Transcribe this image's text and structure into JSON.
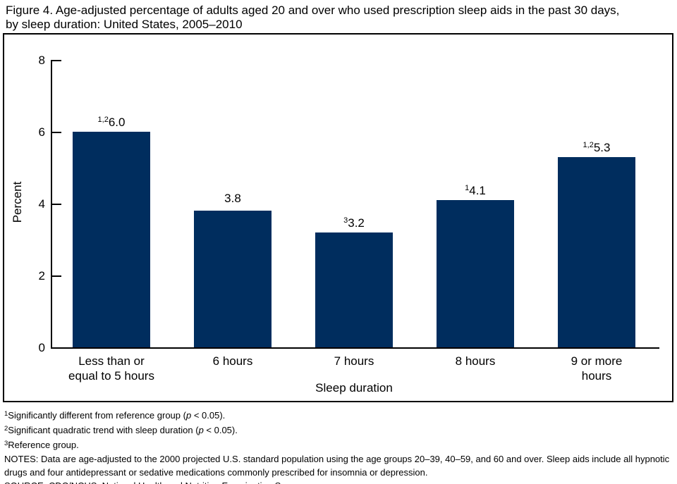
{
  "title": {
    "lines": [
      "Figure 4. Age-adjusted percentage of adults aged 20 and over who used prescription sleep aids in the past 30 days,",
      "by sleep duration: United States, 2005–2010"
    ]
  },
  "chart_data": {
    "type": "bar",
    "categories": [
      [
        "Less than or",
        "equal to 5 hours"
      ],
      [
        "6 hours"
      ],
      [
        "7 hours"
      ],
      [
        "8 hours"
      ],
      [
        "9 or more",
        "hours"
      ]
    ],
    "values": [
      6.0,
      3.8,
      3.2,
      4.1,
      5.3
    ],
    "value_labels": [
      "6.0",
      "3.8",
      "3.2",
      "4.1",
      "5.3"
    ],
    "value_superscripts": [
      "1,2",
      "",
      "3",
      "1",
      "1,2"
    ],
    "title": "",
    "xlabel": "Sleep duration",
    "ylabel": "Percent",
    "ylim": [
      0,
      8
    ],
    "yticks": [
      0,
      2,
      4,
      6,
      8
    ],
    "grid": false,
    "legend_position": "none",
    "bar_color": "#002d5e",
    "axis_color": "#000000"
  },
  "footnotes": [
    [
      {
        "t": "1",
        "s": "sup"
      },
      {
        "t": "Significantly different from reference group (",
        "s": ""
      },
      {
        "t": "p",
        "s": "i"
      },
      {
        "t": " < 0.05).",
        "s": ""
      }
    ],
    [
      {
        "t": "2",
        "s": "sup"
      },
      {
        "t": "Significant quadratic trend with sleep duration (",
        "s": ""
      },
      {
        "t": "p",
        "s": "i"
      },
      {
        "t": " < 0.05).",
        "s": ""
      }
    ],
    [
      {
        "t": "3",
        "s": "sup"
      },
      {
        "t": "Reference group.",
        "s": ""
      }
    ],
    [
      {
        "t": "NOTES: Data are age-adjusted to the 2000 projected U.S. standard population using the age groups 20–39, 40–59, and 60 and over. Sleep aids include all hypnotic drugs and four antidepressant or sedative medications commonly prescribed for insomnia or depression.",
        "s": ""
      }
    ],
    [
      {
        "t": "SOURCE: CDC/NCHS, National Health and Nutrition Examination Survey.",
        "s": ""
      }
    ]
  ]
}
